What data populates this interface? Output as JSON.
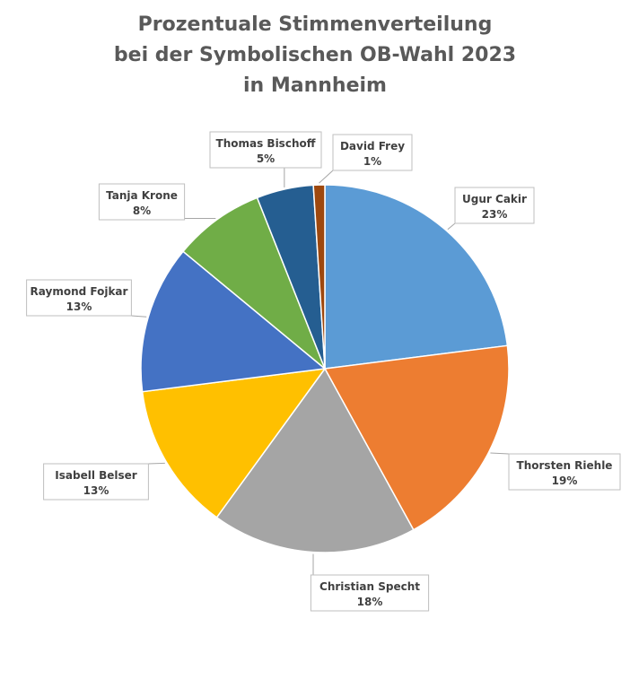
{
  "chart_data": {
    "type": "pie",
    "title": [
      "Prozentuale Stimmenverteilung",
      "bei der Symbolischen OB-Wahl 2023",
      "in Mannheim"
    ],
    "unit": "%",
    "slices": [
      {
        "name": "Ugur Cakir",
        "value": 23,
        "color": "#5B9BD5"
      },
      {
        "name": "Thorsten Riehle",
        "value": 19,
        "color": "#ED7D31"
      },
      {
        "name": "Christian Specht",
        "value": 18,
        "color": "#A5A5A5"
      },
      {
        "name": "Isabell Belser",
        "value": 13,
        "color": "#FFC000"
      },
      {
        "name": "Raymond Fojkar",
        "value": 13,
        "color": "#4472C4"
      },
      {
        "name": "Tanja Krone",
        "value": 8,
        "color": "#70AD47"
      },
      {
        "name": "Thomas Bischoff",
        "value": 5,
        "color": "#255E91"
      },
      {
        "name": "David Frey",
        "value": 1,
        "color": "#9E480E"
      }
    ]
  }
}
